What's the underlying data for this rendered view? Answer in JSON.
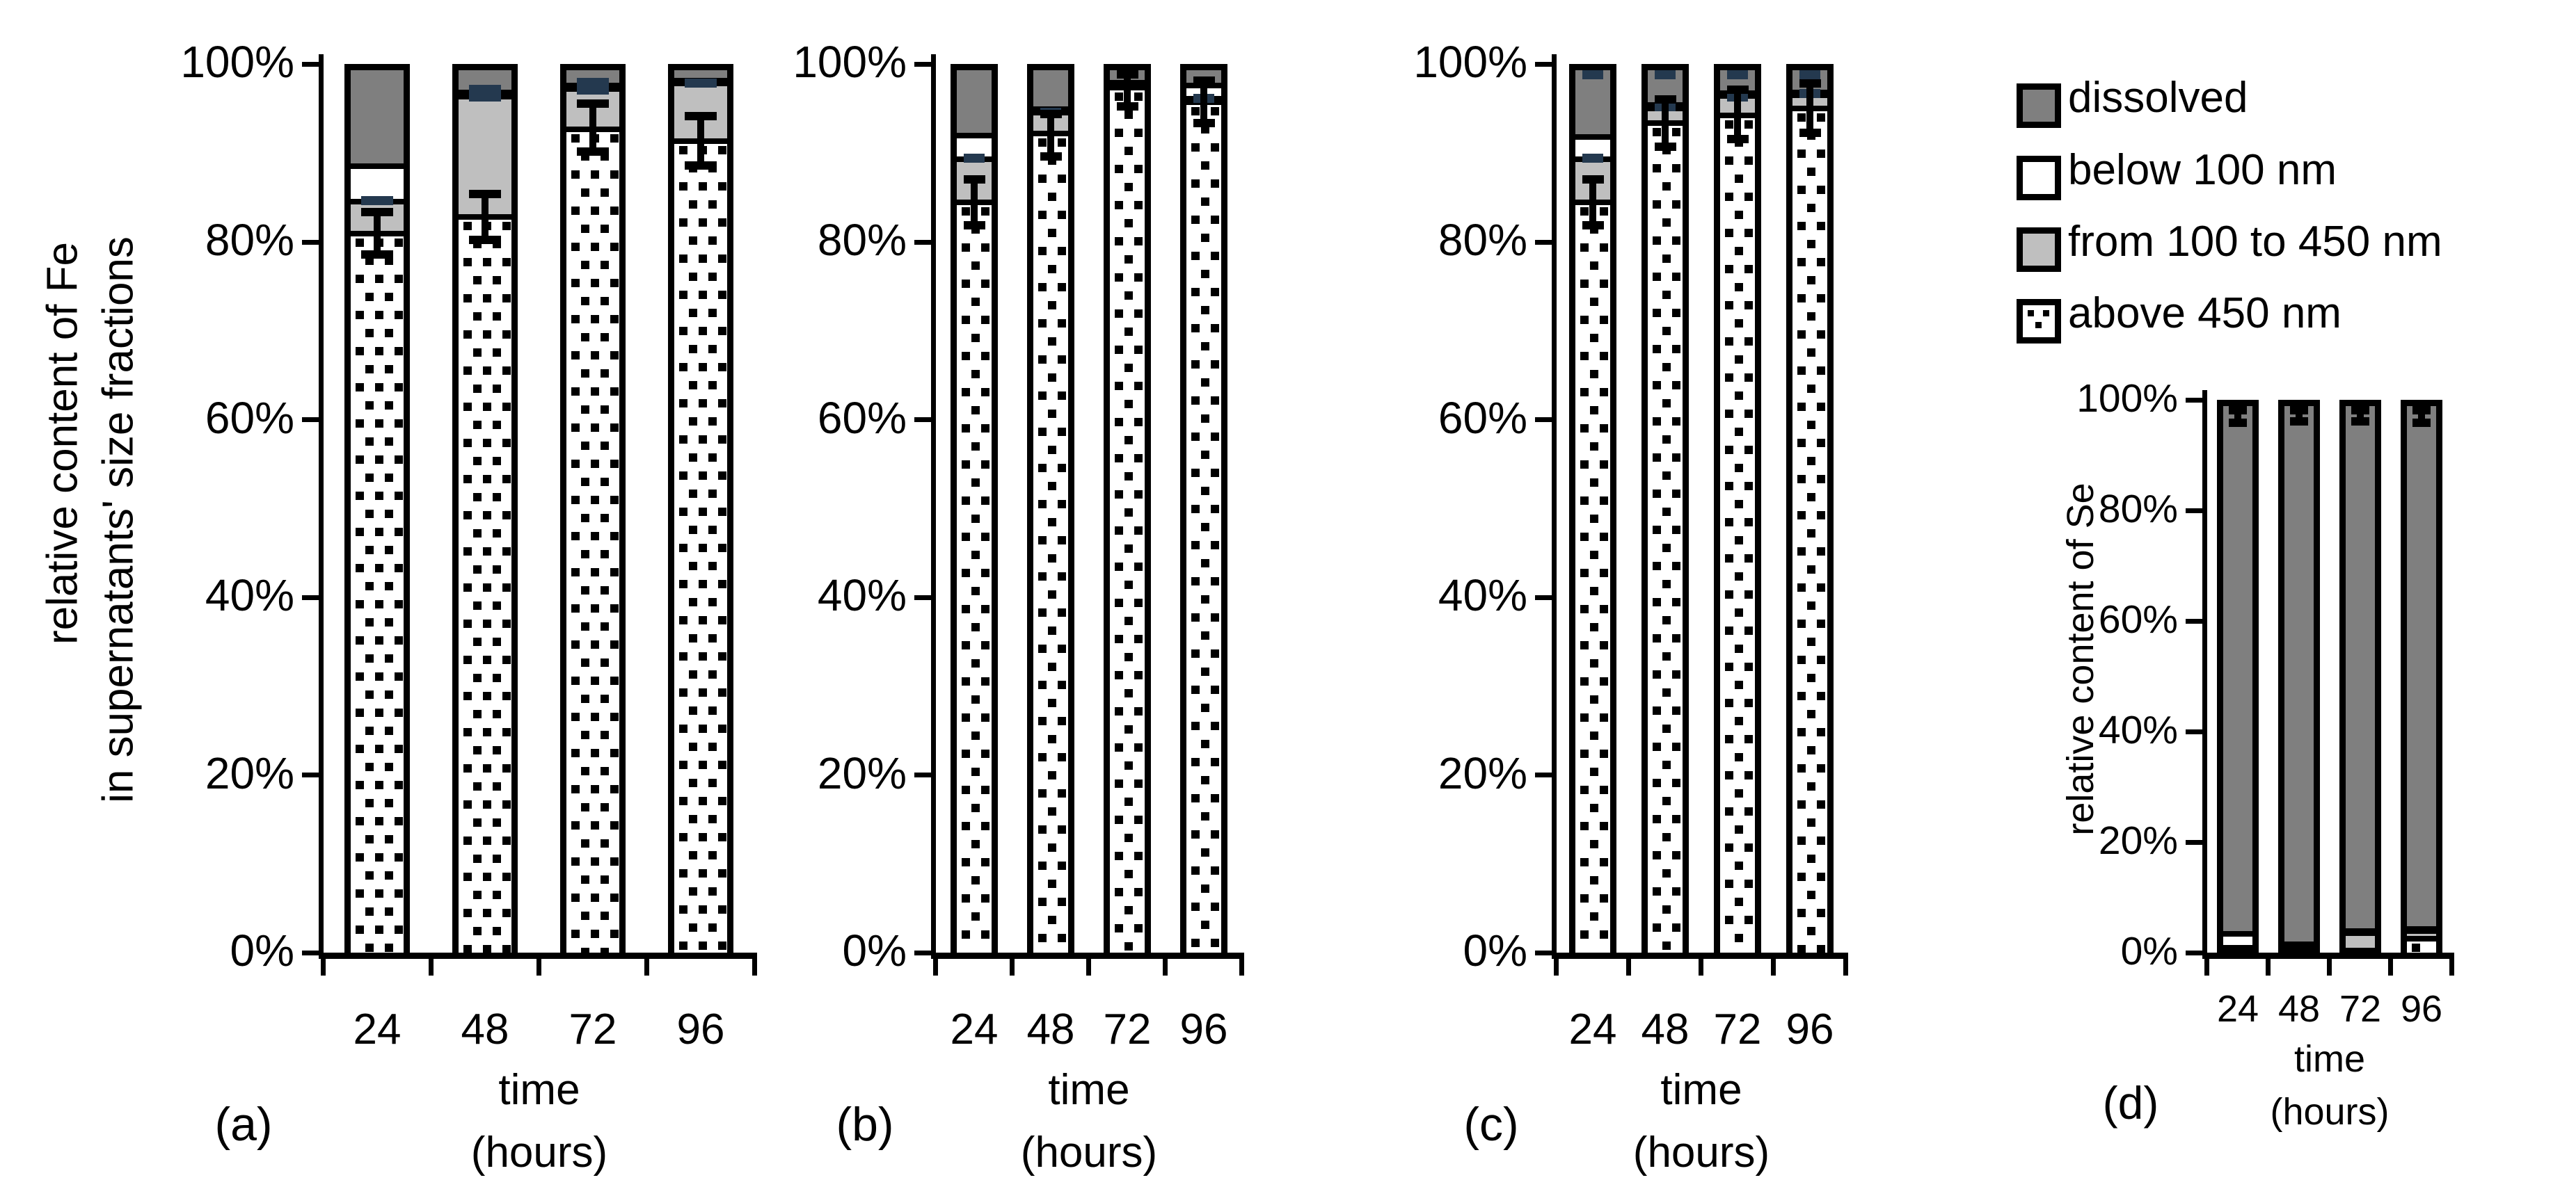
{
  "figure": {
    "background": "#ffffff",
    "panel_labels": [
      "(a)",
      "(b)",
      "(c)",
      "(d)"
    ]
  },
  "colors": {
    "dissolved": "#7f7f7f",
    "below_100_nm": "#ffffff",
    "from_100_to_450_nm": "#bfbfbf",
    "above_450_nm_bg": "#ffffff",
    "dot_color": "#000000",
    "navy_error_cap": "#24394f",
    "axis": "#000000"
  },
  "legend": {
    "items": [
      {
        "label": "dissolved",
        "fill": "#7f7f7f",
        "pattern": "solid"
      },
      {
        "label": "below 100 nm",
        "fill": "#ffffff",
        "pattern": "solid"
      },
      {
        "label": "from 100 to 450 nm",
        "fill": "#bfbfbf",
        "pattern": "solid"
      },
      {
        "label": "above 450 nm",
        "fill": "#ffffff",
        "pattern": "dots"
      }
    ]
  },
  "chart_data": [
    {
      "id": "a",
      "type": "bar",
      "stacked": true,
      "panel_label": "(a)",
      "ylabel_lines": [
        "relative content of Fe",
        "in supernatants' size fractions"
      ],
      "xlabel_lines": [
        "time",
        "(hours)"
      ],
      "categories": [
        "24",
        "48",
        "72",
        "96"
      ],
      "yticks": [
        "100%",
        "80%",
        "60%",
        "40%",
        "20%",
        "0%"
      ],
      "ylim": [
        0,
        100
      ],
      "series": [
        {
          "name": "above 450 nm",
          "values": [
            81.5,
            83.4,
            93.3,
            92.0
          ]
        },
        {
          "name": "from 100 to 450 nm",
          "values": [
            3.6,
            13.6,
            4.6,
            6.5
          ]
        },
        {
          "name": "below 100 nm",
          "values": [
            4.0,
            0.5,
            0.4,
            0.3
          ]
        },
        {
          "name": "dissolved",
          "values": [
            10.9,
            2.5,
            1.7,
            1.2
          ]
        }
      ],
      "error_bars": [
        {
          "center": 81.5,
          "half": 2.4
        },
        {
          "center": 83.4,
          "half": 2.6
        },
        {
          "center": 93.5,
          "half": 2.7
        },
        {
          "center": 92.0,
          "half": 2.8
        }
      ],
      "navy_marks": [
        [
          85.2
        ],
        [
          97.8,
          96.9
        ],
        [
          98.6,
          97.7
        ],
        [
          98.5
        ]
      ]
    },
    {
      "id": "b",
      "type": "bar",
      "stacked": true,
      "panel_label": "(b)",
      "ylabel_lines": [],
      "xlabel_lines": [
        "time",
        "(hours)"
      ],
      "categories": [
        "24",
        "48",
        "72",
        "96"
      ],
      "yticks": [
        "100%",
        "80%",
        "60%",
        "40%",
        "20%",
        "0%"
      ],
      "ylim": [
        0,
        100
      ],
      "series": [
        {
          "name": "above 450 nm",
          "values": [
            85.0,
            92.8,
            98.0,
            96.4
          ]
        },
        {
          "name": "from 100 to 450 nm",
          "values": [
            4.9,
            2.4,
            0.3,
            0.4
          ]
        },
        {
          "name": "below 100 nm",
          "values": [
            2.7,
            0.4,
            0.3,
            1.5
          ]
        },
        {
          "name": "dissolved",
          "values": [
            7.4,
            4.4,
            1.4,
            1.7
          ]
        }
      ],
      "error_bars": [
        {
          "center": 85.0,
          "half": 2.6
        },
        {
          "center": 92.6,
          "half": 2.4
        },
        {
          "center": 98.0,
          "half": 2.1
        },
        {
          "center": 96.4,
          "half": 2.4
        }
      ],
      "navy_marks": [
        [
          90.0
        ],
        [
          95.2
        ],
        [],
        [
          96.8
        ]
      ]
    },
    {
      "id": "c",
      "type": "bar",
      "stacked": true,
      "panel_label": "(c)",
      "ylabel_lines": [],
      "xlabel_lines": [
        "time",
        "(hours)"
      ],
      "categories": [
        "24",
        "48",
        "72",
        "96"
      ],
      "yticks": [
        "100%",
        "80%",
        "60%",
        "40%",
        "20%",
        "0%"
      ],
      "ylim": [
        0,
        100
      ],
      "series": [
        {
          "name": "above 450 nm",
          "values": [
            85.0,
            94.0,
            94.9,
            95.7
          ]
        },
        {
          "name": "from 100 to 450 nm",
          "values": [
            4.9,
            1.7,
            2.2,
            1.5
          ]
        },
        {
          "name": "below 100 nm",
          "values": [
            2.5,
            0.4,
            0.3,
            0.3
          ]
        },
        {
          "name": "dissolved",
          "values": [
            7.6,
            3.9,
            2.6,
            2.5
          ]
        }
      ],
      "error_bars": [
        {
          "center": 85.0,
          "half": 2.6
        },
        {
          "center": 94.0,
          "half": 2.7
        },
        {
          "center": 95.0,
          "half": 2.8
        },
        {
          "center": 95.7,
          "half": 2.8
        }
      ],
      "navy_marks": [
        [
          100,
          90.0
        ],
        [
          100,
          95.8
        ],
        [
          100,
          96.9
        ],
        [
          100,
          97.3
        ]
      ]
    },
    {
      "id": "d",
      "type": "bar",
      "stacked": true,
      "panel_label": "(d)",
      "ylabel_lines": [
        "relative content of Se"
      ],
      "xlabel_lines": [
        "time",
        "(hours)"
      ],
      "categories": [
        "24",
        "48",
        "72",
        "96"
      ],
      "yticks": [
        "100%",
        "80%",
        "60%",
        "40%",
        "20%",
        "0%"
      ],
      "ylim": [
        0,
        100
      ],
      "series": [
        {
          "name": "above 450 nm",
          "values": [
            0.3,
            0.5,
            0.4,
            2.6
          ]
        },
        {
          "name": "from 100 to 450 nm",
          "values": [
            0.6,
            0.2,
            3.2,
            1.3
          ]
        },
        {
          "name": "below 100 nm",
          "values": [
            2.6,
            0.8,
            0.3,
            0.4
          ]
        },
        {
          "name": "dissolved",
          "values": [
            96.5,
            98.5,
            96.1,
            95.7
          ]
        }
      ],
      "error_bars": [
        {
          "center": 98.5,
          "half": 1.5
        },
        {
          "center": 98.6,
          "half": 1.4
        },
        {
          "center": 98.6,
          "half": 1.4
        },
        {
          "center": 98.5,
          "half": 1.5
        }
      ],
      "navy_marks": [
        [],
        [],
        [],
        []
      ]
    }
  ]
}
